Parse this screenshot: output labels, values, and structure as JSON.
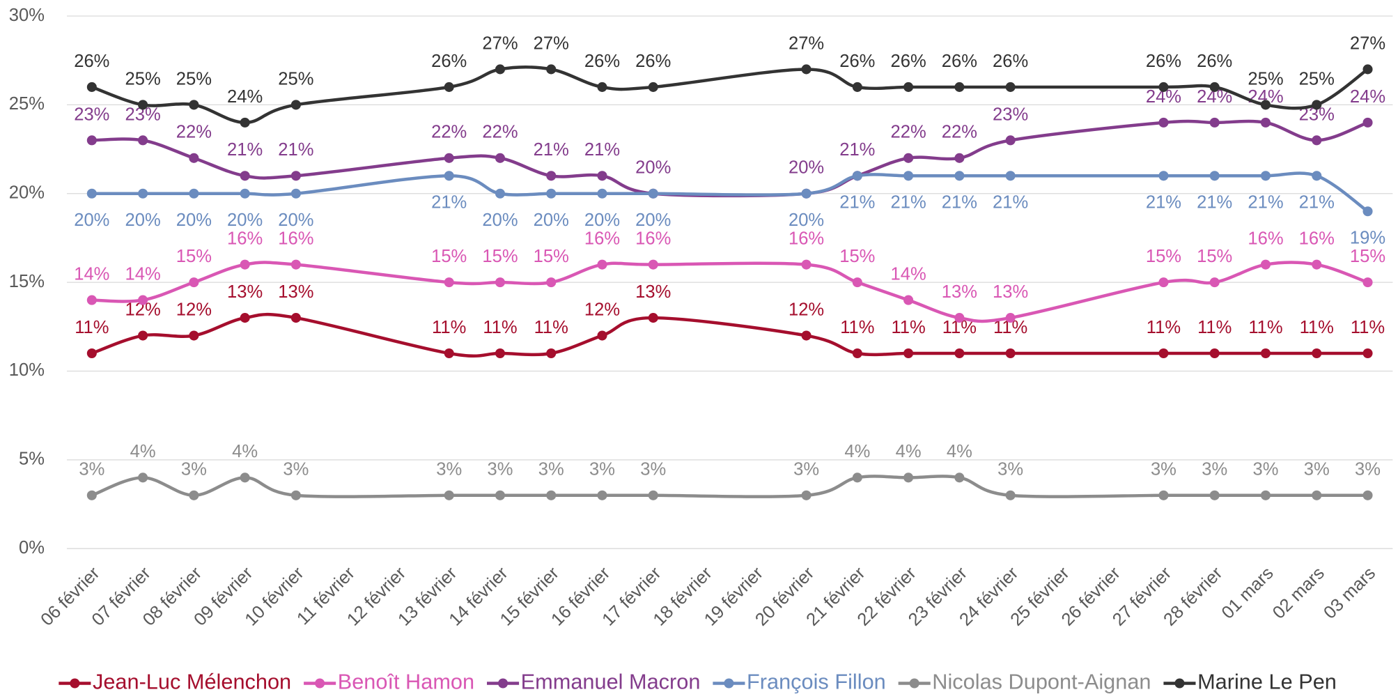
{
  "chart_data": {
    "type": "line",
    "span_gaps": true,
    "smooth": true,
    "grid": true,
    "legend": "bottom",
    "categories": [
      "06 février",
      "07 février",
      "08 février",
      "09 février",
      "10 février",
      "11 février",
      "12 février",
      "13 février",
      "14 février",
      "15 février",
      "16 février",
      "17 février",
      "18 février",
      "19 février",
      "20 février",
      "21 février",
      "22 février",
      "23 février",
      "24 février",
      "25 février",
      "26 février",
      "27 février",
      "28 février",
      "01 mars",
      "02 mars",
      "03 mars"
    ],
    "ylim": [
      0,
      30
    ],
    "yticks": [
      {
        "value": 0,
        "label": "0%"
      },
      {
        "value": 5,
        "label": "5%"
      },
      {
        "value": 10,
        "label": "10%"
      },
      {
        "value": 15,
        "label": "15%"
      },
      {
        "value": 20,
        "label": "20%"
      },
      {
        "value": 25,
        "label": "25%"
      },
      {
        "value": 30,
        "label": "30%"
      }
    ],
    "series": [
      {
        "name": "Jean-Luc Mélenchon",
        "color": "#a50e2d",
        "values": [
          11,
          12,
          12,
          13,
          13,
          null,
          null,
          11,
          11,
          11,
          12,
          13,
          null,
          null,
          12,
          11,
          11,
          11,
          11,
          null,
          null,
          11,
          11,
          11,
          11,
          11
        ],
        "value_labels": [
          "11%",
          "12%",
          "12%",
          "13%",
          "13%",
          null,
          null,
          "11%",
          "11%",
          "11%",
          "12%",
          "13%",
          null,
          null,
          "12%",
          "11%",
          "11%",
          "11%",
          "11%",
          null,
          null,
          "11%",
          "11%",
          "11%",
          "11%",
          "11%"
        ]
      },
      {
        "name": "Benoît Hamon",
        "color": "#d957b4",
        "values": [
          14,
          14,
          15,
          16,
          16,
          null,
          null,
          15,
          15,
          15,
          16,
          16,
          null,
          null,
          16,
          15,
          14,
          13,
          13,
          null,
          null,
          15,
          15,
          16,
          16,
          15
        ],
        "value_labels": [
          "14%",
          "14%",
          "15%",
          "16%",
          "16%",
          null,
          null,
          "15%",
          "15%",
          "15%",
          "16%",
          "16%",
          null,
          null,
          "16%",
          "15%",
          "14%",
          "13%",
          "13%",
          null,
          null,
          "15%",
          "15%",
          "16%",
          "16%",
          "15%"
        ]
      },
      {
        "name": "Emmanuel Macron",
        "color": "#833c8c",
        "values": [
          23,
          23,
          22,
          21,
          21,
          null,
          null,
          22,
          22,
          21,
          21,
          20,
          null,
          null,
          20,
          21,
          22,
          22,
          23,
          null,
          null,
          24,
          24,
          24,
          23,
          24
        ],
        "value_labels": [
          "23%",
          "23%",
          "22%",
          "21%",
          "21%",
          null,
          null,
          "22%",
          "22%",
          "21%",
          "21%",
          "20%",
          null,
          null,
          "20%",
          "21%",
          "22%",
          "22%",
          "23%",
          null,
          null,
          "24%",
          "24%",
          "24%",
          "23%",
          "24%"
        ]
      },
      {
        "name": "François Fillon",
        "color": "#6b8cbf",
        "values": [
          20,
          20,
          20,
          20,
          20,
          null,
          null,
          21,
          20,
          20,
          20,
          20,
          null,
          null,
          20,
          21,
          21,
          21,
          21,
          null,
          null,
          21,
          21,
          21,
          21,
          19
        ],
        "value_labels": [
          "20%",
          "20%",
          "20%",
          "20%",
          "20%",
          null,
          null,
          "21%",
          "20%",
          "20%",
          "20%",
          "20%",
          null,
          null,
          "20%",
          "21%",
          "21%",
          "21%",
          "21%",
          null,
          null,
          "21%",
          "21%",
          "21%",
          "21%",
          "19%"
        ]
      },
      {
        "name": "Nicolas Dupont-Aignan",
        "color": "#8c8c8c",
        "values": [
          3,
          4,
          3,
          4,
          3,
          null,
          null,
          3,
          3,
          3,
          3,
          3,
          null,
          null,
          3,
          4,
          4,
          4,
          3,
          null,
          null,
          3,
          3,
          3,
          3,
          3
        ],
        "value_labels": [
          "3%",
          "4%",
          "3%",
          "4%",
          "3%",
          null,
          null,
          "3%",
          "3%",
          "3%",
          "3%",
          "3%",
          null,
          null,
          "3%",
          "4%",
          "4%",
          "4%",
          "3%",
          null,
          null,
          "3%",
          "3%",
          "3%",
          "3%",
          "3%"
        ]
      },
      {
        "name": "Marine Le Pen",
        "color": "#333333",
        "values": [
          26,
          25,
          25,
          24,
          25,
          null,
          null,
          26,
          27,
          27,
          26,
          26,
          null,
          null,
          27,
          26,
          26,
          26,
          26,
          null,
          null,
          26,
          26,
          25,
          25,
          27
        ],
        "value_labels": [
          "26%",
          "25%",
          "25%",
          "24%",
          "25%",
          null,
          null,
          "26%",
          "27%",
          "27%",
          "26%",
          "26%",
          null,
          null,
          "27%",
          "26%",
          "26%",
          "26%",
          "26%",
          null,
          null,
          "26%",
          "26%",
          "25%",
          "25%",
          "27%"
        ]
      }
    ]
  }
}
